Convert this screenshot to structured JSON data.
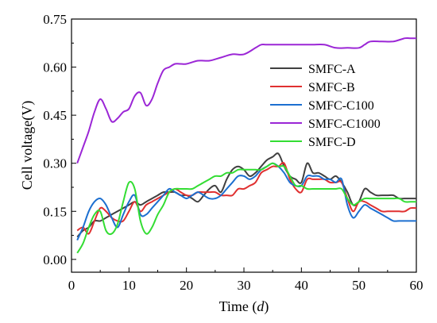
{
  "chart_data": {
    "type": "line",
    "xlabel": "Time",
    "xlabel_unit": "d",
    "ylabel": "Cell voltage(V)",
    "xlim": [
      0,
      60
    ],
    "ylim": [
      -0.04,
      0.75
    ],
    "x_ticks": [
      0,
      10,
      20,
      30,
      40,
      50,
      60
    ],
    "x_tick_labels": [
      "0",
      "10",
      "20",
      "30",
      "40",
      "50",
      "60"
    ],
    "y_ticks": [
      0.0,
      0.15,
      0.3,
      0.45,
      0.6,
      0.75
    ],
    "y_tick_labels": [
      "0.00",
      "0.15",
      "0.30",
      "0.45",
      "0.60",
      "0.75"
    ],
    "grid": false,
    "legend_position": "center-right",
    "series": [
      {
        "name": "SMFC-A",
        "color": "#404040",
        "points": [
          [
            1,
            0.07
          ],
          [
            2,
            0.09
          ],
          [
            3,
            0.1
          ],
          [
            4,
            0.12
          ],
          [
            5,
            0.12
          ],
          [
            6,
            0.13
          ],
          [
            7,
            0.14
          ],
          [
            8,
            0.15
          ],
          [
            9,
            0.16
          ],
          [
            10,
            0.17
          ],
          [
            11,
            0.18
          ],
          [
            12,
            0.17
          ],
          [
            13,
            0.18
          ],
          [
            14,
            0.19
          ],
          [
            15,
            0.2
          ],
          [
            16,
            0.21
          ],
          [
            17,
            0.21
          ],
          [
            18,
            0.21
          ],
          [
            19,
            0.2
          ],
          [
            20,
            0.2
          ],
          [
            21,
            0.19
          ],
          [
            22,
            0.18
          ],
          [
            23,
            0.2
          ],
          [
            24,
            0.22
          ],
          [
            25,
            0.23
          ],
          [
            26,
            0.21
          ],
          [
            27,
            0.25
          ],
          [
            28,
            0.28
          ],
          [
            29,
            0.29
          ],
          [
            30,
            0.28
          ],
          [
            31,
            0.26
          ],
          [
            32,
            0.27
          ],
          [
            33,
            0.29
          ],
          [
            34,
            0.31
          ],
          [
            35,
            0.32
          ],
          [
            36,
            0.33
          ],
          [
            37,
            0.29
          ],
          [
            38,
            0.26
          ],
          [
            39,
            0.25
          ],
          [
            40,
            0.24
          ],
          [
            41,
            0.3
          ],
          [
            42,
            0.27
          ],
          [
            43,
            0.27
          ],
          [
            44,
            0.26
          ],
          [
            45,
            0.25
          ],
          [
            46,
            0.26
          ],
          [
            47,
            0.24
          ],
          [
            48,
            0.21
          ],
          [
            49,
            0.17
          ],
          [
            50,
            0.18
          ],
          [
            51,
            0.22
          ],
          [
            52,
            0.21
          ],
          [
            53,
            0.2
          ],
          [
            54,
            0.2
          ],
          [
            55,
            0.2
          ],
          [
            56,
            0.2
          ],
          [
            57,
            0.19
          ],
          [
            58,
            0.19
          ],
          [
            59,
            0.19
          ],
          [
            60,
            0.19
          ]
        ]
      },
      {
        "name": "SMFC-B",
        "color": "#e03030",
        "points": [
          [
            1,
            0.09
          ],
          [
            2,
            0.1
          ],
          [
            3,
            0.08
          ],
          [
            4,
            0.12
          ],
          [
            5,
            0.16
          ],
          [
            6,
            0.15
          ],
          [
            7,
            0.13
          ],
          [
            8,
            0.12
          ],
          [
            9,
            0.12
          ],
          [
            10,
            0.15
          ],
          [
            11,
            0.18
          ],
          [
            12,
            0.15
          ],
          [
            13,
            0.17
          ],
          [
            14,
            0.18
          ],
          [
            15,
            0.19
          ],
          [
            16,
            0.2
          ],
          [
            17,
            0.21
          ],
          [
            18,
            0.22
          ],
          [
            19,
            0.21
          ],
          [
            20,
            0.2
          ],
          [
            21,
            0.2
          ],
          [
            22,
            0.21
          ],
          [
            23,
            0.21
          ],
          [
            24,
            0.21
          ],
          [
            25,
            0.21
          ],
          [
            26,
            0.2
          ],
          [
            27,
            0.2
          ],
          [
            28,
            0.2
          ],
          [
            29,
            0.22
          ],
          [
            30,
            0.22
          ],
          [
            31,
            0.23
          ],
          [
            32,
            0.24
          ],
          [
            33,
            0.27
          ],
          [
            34,
            0.28
          ],
          [
            35,
            0.29
          ],
          [
            36,
            0.29
          ],
          [
            37,
            0.3
          ],
          [
            38,
            0.25
          ],
          [
            39,
            0.22
          ],
          [
            40,
            0.21
          ],
          [
            41,
            0.25
          ],
          [
            42,
            0.25
          ],
          [
            43,
            0.25
          ],
          [
            44,
            0.25
          ],
          [
            45,
            0.24
          ],
          [
            46,
            0.24
          ],
          [
            47,
            0.24
          ],
          [
            48,
            0.19
          ],
          [
            49,
            0.15
          ],
          [
            50,
            0.18
          ],
          [
            51,
            0.18
          ],
          [
            52,
            0.17
          ],
          [
            53,
            0.16
          ],
          [
            54,
            0.15
          ],
          [
            55,
            0.15
          ],
          [
            56,
            0.15
          ],
          [
            57,
            0.15
          ],
          [
            58,
            0.15
          ],
          [
            59,
            0.16
          ],
          [
            60,
            0.16
          ]
        ]
      },
      {
        "name": "SMFC-C100",
        "color": "#1c6fd0",
        "points": [
          [
            1,
            0.06
          ],
          [
            2,
            0.1
          ],
          [
            3,
            0.15
          ],
          [
            4,
            0.18
          ],
          [
            5,
            0.19
          ],
          [
            6,
            0.17
          ],
          [
            7,
            0.13
          ],
          [
            8,
            0.1
          ],
          [
            9,
            0.14
          ],
          [
            10,
            0.18
          ],
          [
            11,
            0.2
          ],
          [
            12,
            0.14
          ],
          [
            13,
            0.14
          ],
          [
            14,
            0.16
          ],
          [
            15,
            0.18
          ],
          [
            16,
            0.2
          ],
          [
            17,
            0.22
          ],
          [
            18,
            0.21
          ],
          [
            19,
            0.2
          ],
          [
            20,
            0.19
          ],
          [
            21,
            0.2
          ],
          [
            22,
            0.21
          ],
          [
            23,
            0.2
          ],
          [
            24,
            0.19
          ],
          [
            25,
            0.19
          ],
          [
            26,
            0.2
          ],
          [
            27,
            0.22
          ],
          [
            28,
            0.24
          ],
          [
            29,
            0.26
          ],
          [
            30,
            0.26
          ],
          [
            31,
            0.25
          ],
          [
            32,
            0.26
          ],
          [
            33,
            0.28
          ],
          [
            34,
            0.29
          ],
          [
            35,
            0.3
          ],
          [
            36,
            0.29
          ],
          [
            37,
            0.27
          ],
          [
            38,
            0.24
          ],
          [
            39,
            0.23
          ],
          [
            40,
            0.23
          ],
          [
            41,
            0.26
          ],
          [
            42,
            0.26
          ],
          [
            43,
            0.26
          ],
          [
            44,
            0.25
          ],
          [
            45,
            0.25
          ],
          [
            46,
            0.24
          ],
          [
            47,
            0.25
          ],
          [
            48,
            0.17
          ],
          [
            49,
            0.13
          ],
          [
            50,
            0.15
          ],
          [
            51,
            0.17
          ],
          [
            52,
            0.16
          ],
          [
            53,
            0.15
          ],
          [
            54,
            0.14
          ],
          [
            55,
            0.13
          ],
          [
            56,
            0.12
          ],
          [
            57,
            0.12
          ],
          [
            58,
            0.12
          ],
          [
            59,
            0.12
          ],
          [
            60,
            0.12
          ]
        ]
      },
      {
        "name": "SMFC-C1000",
        "color": "#9b26d6",
        "points": [
          [
            1,
            0.3
          ],
          [
            2,
            0.35
          ],
          [
            3,
            0.4
          ],
          [
            4,
            0.46
          ],
          [
            5,
            0.5
          ],
          [
            6,
            0.47
          ],
          [
            7,
            0.43
          ],
          [
            8,
            0.44
          ],
          [
            9,
            0.46
          ],
          [
            10,
            0.47
          ],
          [
            11,
            0.51
          ],
          [
            12,
            0.52
          ],
          [
            13,
            0.48
          ],
          [
            14,
            0.5
          ],
          [
            15,
            0.55
          ],
          [
            16,
            0.59
          ],
          [
            17,
            0.6
          ],
          [
            18,
            0.61
          ],
          [
            19,
            0.61
          ],
          [
            20,
            0.61
          ],
          [
            22,
            0.62
          ],
          [
            24,
            0.62
          ],
          [
            26,
            0.63
          ],
          [
            28,
            0.64
          ],
          [
            30,
            0.64
          ],
          [
            32,
            0.66
          ],
          [
            33,
            0.67
          ],
          [
            34,
            0.67
          ],
          [
            36,
            0.67
          ],
          [
            38,
            0.67
          ],
          [
            40,
            0.67
          ],
          [
            42,
            0.67
          ],
          [
            44,
            0.67
          ],
          [
            46,
            0.66
          ],
          [
            48,
            0.66
          ],
          [
            50,
            0.66
          ],
          [
            51,
            0.67
          ],
          [
            52,
            0.68
          ],
          [
            54,
            0.68
          ],
          [
            56,
            0.68
          ],
          [
            58,
            0.69
          ],
          [
            59,
            0.69
          ],
          [
            60,
            0.69
          ]
        ]
      },
      {
        "name": "SMFC-D",
        "color": "#33dd33",
        "points": [
          [
            1,
            0.02
          ],
          [
            2,
            0.05
          ],
          [
            3,
            0.1
          ],
          [
            4,
            0.14
          ],
          [
            5,
            0.15
          ],
          [
            6,
            0.09
          ],
          [
            7,
            0.08
          ],
          [
            8,
            0.11
          ],
          [
            9,
            0.18
          ],
          [
            10,
            0.24
          ],
          [
            11,
            0.22
          ],
          [
            12,
            0.12
          ],
          [
            13,
            0.08
          ],
          [
            14,
            0.1
          ],
          [
            15,
            0.14
          ],
          [
            16,
            0.17
          ],
          [
            17,
            0.21
          ],
          [
            18,
            0.22
          ],
          [
            19,
            0.22
          ],
          [
            20,
            0.22
          ],
          [
            21,
            0.22
          ],
          [
            22,
            0.23
          ],
          [
            23,
            0.24
          ],
          [
            24,
            0.25
          ],
          [
            25,
            0.26
          ],
          [
            26,
            0.26
          ],
          [
            27,
            0.27
          ],
          [
            28,
            0.27
          ],
          [
            29,
            0.28
          ],
          [
            30,
            0.28
          ],
          [
            31,
            0.28
          ],
          [
            32,
            0.28
          ],
          [
            33,
            0.28
          ],
          [
            34,
            0.29
          ],
          [
            35,
            0.3
          ],
          [
            36,
            0.29
          ],
          [
            37,
            0.29
          ],
          [
            38,
            0.26
          ],
          [
            39,
            0.23
          ],
          [
            40,
            0.23
          ],
          [
            41,
            0.22
          ],
          [
            42,
            0.22
          ],
          [
            43,
            0.22
          ],
          [
            44,
            0.22
          ],
          [
            45,
            0.22
          ],
          [
            46,
            0.22
          ],
          [
            47,
            0.22
          ],
          [
            48,
            0.19
          ],
          [
            49,
            0.17
          ],
          [
            50,
            0.18
          ],
          [
            51,
            0.19
          ],
          [
            52,
            0.19
          ],
          [
            53,
            0.19
          ],
          [
            54,
            0.19
          ],
          [
            55,
            0.19
          ],
          [
            56,
            0.19
          ],
          [
            57,
            0.19
          ],
          [
            58,
            0.18
          ],
          [
            59,
            0.18
          ],
          [
            60,
            0.18
          ]
        ]
      }
    ]
  }
}
